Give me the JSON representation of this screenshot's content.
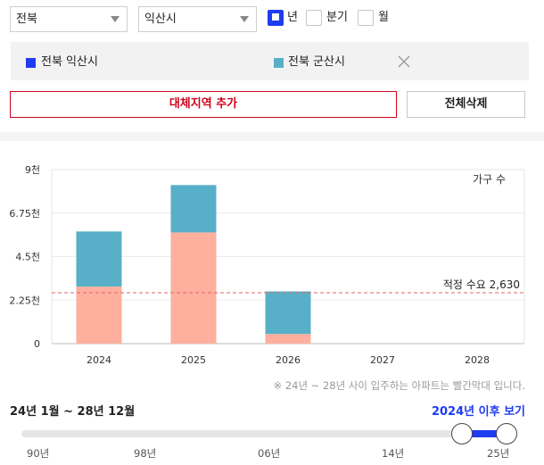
{
  "filters": {
    "region": "전북",
    "city": "익산시",
    "period_options": [
      {
        "label": "년",
        "checked": true
      },
      {
        "label": "분기",
        "checked": false
      },
      {
        "label": "월",
        "checked": false
      }
    ]
  },
  "comparison": {
    "items": [
      {
        "label": "전북 익산시",
        "color": "#1e3cf0"
      },
      {
        "label": "전북 군산시",
        "color": "#58b0c8"
      }
    ]
  },
  "buttons": {
    "add_region": "대체지역 추가",
    "delete_all": "전체삭제"
  },
  "chart_data": {
    "type": "bar",
    "stacked": true,
    "categories": [
      "2024",
      "2025",
      "2026",
      "2027",
      "2028"
    ],
    "series": [
      {
        "color": "#ffaf9e",
        "values": [
          2950,
          5750,
          500,
          0,
          0
        ]
      },
      {
        "color": "#58b0c8",
        "values": [
          2850,
          2450,
          2200,
          0,
          0
        ]
      }
    ],
    "yticks": [
      "0",
      "2.25천",
      "4.5천",
      "6.75천",
      "9천"
    ],
    "ylim": [
      0,
      9000
    ],
    "ylabel": "가구 수",
    "reference_line": {
      "value": 2630,
      "label": "적정 수요 2,630",
      "color": "#e06666"
    },
    "grid": true
  },
  "note": "※ 24년 ~ 28년 사이 입주하는 아파트는 빨간막대 입니다.",
  "range_label": "24년 1월 ~ 28년 12월",
  "after_link": "2024년 이후 보기",
  "slider": {
    "ticks": [
      "90년",
      "98년",
      "06년",
      "14년",
      "25년"
    ],
    "start_year": 2024,
    "end_year": 2028
  }
}
